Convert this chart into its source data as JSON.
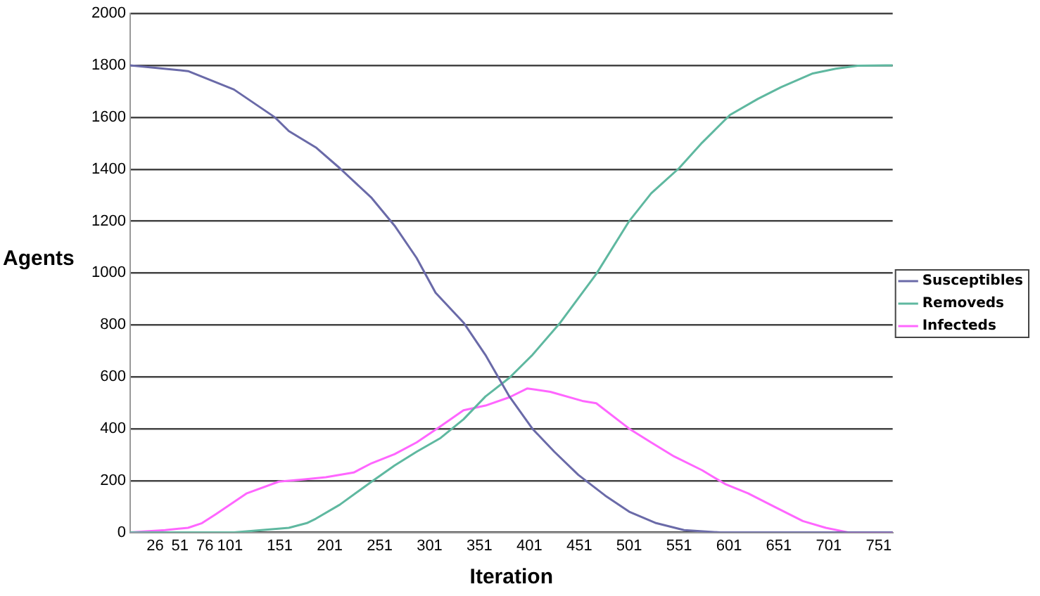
{
  "chart_data": {
    "type": "line",
    "xlabel": "Iteration",
    "ylabel": "Agents",
    "xlim": [
      1,
      765
    ],
    "xticks": [
      26,
      51,
      76,
      101,
      151,
      201,
      251,
      301,
      351,
      401,
      451,
      501,
      551,
      601,
      651,
      701,
      751
    ],
    "ylim": [
      0,
      2000
    ],
    "yticks": [
      0,
      200,
      400,
      600,
      800,
      1000,
      1200,
      1400,
      1600,
      1800,
      2000
    ],
    "grid": "y",
    "legend": "right",
    "marker": "none",
    "line_style": "solid",
    "series": [
      {
        "name": "Susceptibles",
        "color": "#6a6aa8",
        "x": [
          1,
          59,
          105,
          146,
          160,
          187,
          211,
          243,
          266,
          288,
          307,
          335,
          357,
          381,
          404,
          426,
          450,
          477,
          501,
          528,
          556,
          592,
          765
        ],
        "values": [
          1800,
          1778,
          1707,
          1600,
          1547,
          1484,
          1404,
          1289,
          1182,
          1058,
          924,
          809,
          684,
          524,
          400,
          311,
          222,
          142,
          80,
          36,
          9,
          0,
          0
        ]
      },
      {
        "name": "Removeds",
        "color": "#5fb8a0",
        "x": [
          1,
          105,
          160,
          178,
          187,
          211,
          243,
          266,
          288,
          312,
          335,
          357,
          381,
          404,
          432,
          468,
          501,
          523,
          551,
          574,
          602,
          630,
          653,
          685,
          708,
          730,
          758,
          765
        ],
        "values": [
          0,
          0,
          18,
          36,
          53,
          107,
          196,
          258,
          311,
          364,
          436,
          524,
          596,
          684,
          809,
          996,
          1200,
          1307,
          1404,
          1502,
          1609,
          1671,
          1716,
          1769,
          1787,
          1799,
          1800,
          1800
        ]
      },
      {
        "name": "Infecteds",
        "color": "#ff66ff",
        "x": [
          1,
          36,
          59,
          73,
          87,
          118,
          150,
          174,
          197,
          225,
          243,
          266,
          288,
          312,
          335,
          357,
          381,
          399,
          422,
          454,
          468,
          501,
          523,
          546,
          574,
          597,
          620,
          647,
          675,
          698,
          721,
          765
        ],
        "values": [
          0,
          9,
          18,
          36,
          71,
          151,
          196,
          204,
          213,
          231,
          267,
          302,
          347,
          409,
          471,
          489,
          521,
          555,
          542,
          507,
          498,
          400,
          347,
          293,
          240,
          187,
          151,
          98,
          44,
          18,
          0,
          0
        ]
      }
    ]
  }
}
